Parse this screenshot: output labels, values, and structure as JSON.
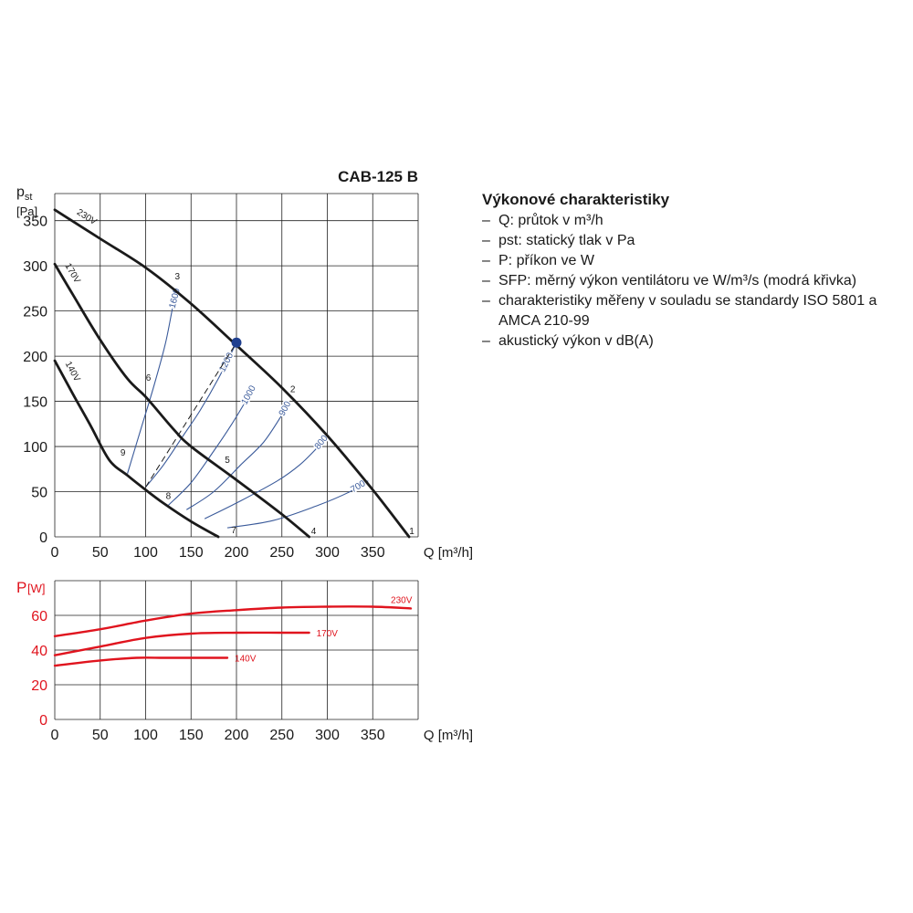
{
  "title": "CAB-125 B",
  "info": {
    "heading": "Výkonové charakteristiky",
    "items": [
      "Q: průtok v m³/h",
      "pst: statický tlak v Pa",
      "P: příkon ve W",
      "SFP: měrný výkon ventilátoru ve W/m³/s (modrá křivka)",
      "charakteristiky měřeny v souladu se standardy ISO 5801 a AMCA 210-99",
      "akustický výkon v dB(A)"
    ]
  },
  "colors": {
    "fan_curves": "#1a1a1a",
    "sfp_curves": "#3a5a9a",
    "power_curves": "#e0141e",
    "operating_point": "#1f3f8f",
    "grid": "#222222"
  },
  "chart_data": [
    {
      "type": "line",
      "ylabel": "pst",
      "yunit": "[Pa]",
      "xlabel": "Q [m³/h]",
      "xlim": [
        0,
        400
      ],
      "ylim": [
        0,
        380
      ],
      "xticks": [
        0,
        50,
        100,
        150,
        200,
        250,
        300,
        350
      ],
      "yticks": [
        0,
        50,
        100,
        150,
        200,
        250,
        300,
        350
      ],
      "grid": true,
      "series": [
        {
          "name": "230V",
          "x": [
            0,
            50,
            100,
            150,
            200,
            250,
            300,
            350,
            390
          ],
          "y": [
            362,
            330,
            298,
            258,
            212,
            165,
            112,
            52,
            0
          ]
        },
        {
          "name": "170V",
          "x": [
            0,
            20,
            50,
            80,
            100,
            130,
            150,
            200,
            250,
            280
          ],
          "y": [
            302,
            268,
            218,
            175,
            155,
            120,
            100,
            63,
            25,
            0
          ]
        },
        {
          "name": "140V",
          "x": [
            0,
            20,
            40,
            60,
            80,
            100,
            120,
            150,
            180
          ],
          "y": [
            195,
            158,
            122,
            85,
            68,
            52,
            37,
            17,
            0
          ]
        }
      ],
      "sfp_curves": [
        {
          "label": "1600",
          "x": [
            80,
            95,
            110,
            122,
            130,
            135
          ],
          "y": [
            70,
            120,
            170,
            215,
            255,
            275
          ]
        },
        {
          "label": "1200",
          "x": [
            100,
            120,
            140,
            160,
            180,
            200
          ],
          "y": [
            55,
            80,
            110,
            140,
            175,
            215
          ]
        },
        {
          "label": "1000",
          "x": [
            125,
            150,
            175,
            195,
            210,
            218
          ],
          "y": [
            35,
            60,
            95,
            125,
            150,
            165
          ]
        },
        {
          "label": "900",
          "x": [
            145,
            175,
            205,
            230,
            250,
            258
          ],
          "y": [
            30,
            50,
            80,
            105,
            135,
            150
          ]
        },
        {
          "label": "800",
          "x": [
            165,
            205,
            245,
            270,
            290,
            298
          ],
          "y": [
            20,
            40,
            62,
            80,
            100,
            110
          ]
        },
        {
          "label": "700",
          "x": [
            190,
            240,
            290,
            325,
            345
          ],
          "y": [
            10,
            18,
            35,
            50,
            62
          ]
        }
      ],
      "markers": [
        {
          "label": "1",
          "x": 393,
          "y": 3
        },
        {
          "label": "2",
          "x": 262,
          "y": 160
        },
        {
          "label": "3",
          "x": 135,
          "y": 285
        },
        {
          "label": "4",
          "x": 285,
          "y": 3
        },
        {
          "label": "5",
          "x": 190,
          "y": 82
        },
        {
          "label": "6",
          "x": 103,
          "y": 173
        },
        {
          "label": "7",
          "x": 197,
          "y": 4
        },
        {
          "label": "8",
          "x": 125,
          "y": 42
        },
        {
          "label": "9",
          "x": 75,
          "y": 90
        }
      ],
      "operating_point": {
        "x": 200,
        "y": 215
      },
      "dashed_line": {
        "x": [
          100,
          200
        ],
        "y": [
          55,
          215
        ]
      }
    },
    {
      "type": "line",
      "ylabel": "P",
      "yunit": "[W]",
      "xlabel": "Q [m³/h]",
      "xlim": [
        0,
        400
      ],
      "ylim": [
        0,
        80
      ],
      "xticks": [
        0,
        50,
        100,
        150,
        200,
        250,
        300,
        350
      ],
      "yticks": [
        0,
        20,
        40,
        60
      ],
      "grid": true,
      "series": [
        {
          "name": "230V",
          "x": [
            0,
            50,
            100,
            150,
            200,
            250,
            300,
            350,
            392
          ],
          "y": [
            48,
            52,
            57,
            61,
            63,
            64.5,
            65,
            65,
            64
          ]
        },
        {
          "name": "170V",
          "x": [
            0,
            50,
            100,
            150,
            200,
            250,
            280
          ],
          "y": [
            37,
            42,
            47,
            49.5,
            50,
            50,
            50
          ]
        },
        {
          "name": "140V",
          "x": [
            0,
            50,
            90,
            120,
            150,
            190
          ],
          "y": [
            31,
            34,
            35.5,
            35.5,
            35.5,
            35.5
          ]
        }
      ]
    }
  ]
}
